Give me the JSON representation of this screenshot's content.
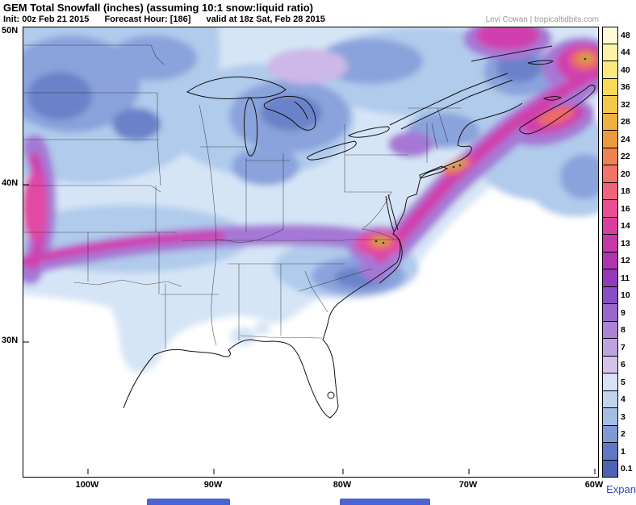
{
  "header": {
    "title": "GEM Total Snowfall (inches) (assuming 10:1 snow:liquid ratio)",
    "init_label": "Init: 00z Feb 21 2015",
    "forecast_label": "Forecast Hour: [186]",
    "valid_label": "valid at 18z Sat, Feb 28 2015",
    "credit": "Levi Cowan | tropicaltidbits.com"
  },
  "map": {
    "lat_labels": [
      "50N",
      "40N",
      "30N"
    ],
    "lon_labels": [
      "100W",
      "90W",
      "80W",
      "70W",
      "60W"
    ]
  },
  "colorbar": {
    "units": "inches",
    "levels": [
      {
        "label": "48",
        "color": "#fffbd9"
      },
      {
        "label": "44",
        "color": "#fdf3a8"
      },
      {
        "label": "40",
        "color": "#fbe97f"
      },
      {
        "label": "36",
        "color": "#f8db59"
      },
      {
        "label": "32",
        "color": "#f4c94b"
      },
      {
        "label": "28",
        "color": "#efb13f"
      },
      {
        "label": "24",
        "color": "#eb9a3e"
      },
      {
        "label": "22",
        "color": "#ee8455"
      },
      {
        "label": "20",
        "color": "#f07468"
      },
      {
        "label": "18",
        "color": "#f1647e"
      },
      {
        "label": "16",
        "color": "#ea4f92"
      },
      {
        "label": "14",
        "color": "#d9409e"
      },
      {
        "label": "13",
        "color": "#c438a8"
      },
      {
        "label": "12",
        "color": "#ad36b0"
      },
      {
        "label": "11",
        "color": "#953ab8"
      },
      {
        "label": "10",
        "color": "#8a4ec4"
      },
      {
        "label": "9",
        "color": "#9a68cb"
      },
      {
        "label": "8",
        "color": "#ab84d5"
      },
      {
        "label": "7",
        "color": "#bfa3e0"
      },
      {
        "label": "6",
        "color": "#d4c4ec"
      },
      {
        "label": "5",
        "color": "#d9e2f4"
      },
      {
        "label": "4",
        "color": "#c2d4ee"
      },
      {
        "label": "3",
        "color": "#a3bde4"
      },
      {
        "label": "2",
        "color": "#7f9ad5"
      },
      {
        "label": "1",
        "color": "#5f78c4"
      },
      {
        "label": "0.1",
        "color": "#4d63b4"
      }
    ]
  },
  "footer": {
    "expand_label": "Expan"
  },
  "chart_data": {
    "type": "heatmap",
    "title": "GEM Total Snowfall (inches) (assuming 10:1 snow:liquid ratio)",
    "init": "00z Feb 21 2015",
    "forecast_hour": 186,
    "valid": "18z Sat, Feb 28 2015",
    "units": "inches",
    "x_axis": {
      "label": "longitude",
      "ticks": [
        "100W",
        "90W",
        "80W",
        "70W",
        "60W"
      ]
    },
    "y_axis": {
      "label": "latitude",
      "ticks": [
        "50N",
        "40N",
        "30N"
      ]
    },
    "scale_levels_inches": [
      0.1,
      1,
      2,
      3,
      4,
      5,
      6,
      7,
      8,
      9,
      10,
      11,
      12,
      13,
      14,
      16,
      18,
      20,
      22,
      24,
      28,
      32,
      36,
      40,
      44,
      48
    ],
    "credit": "Levi Cowan | tropicaltidbits.com"
  }
}
